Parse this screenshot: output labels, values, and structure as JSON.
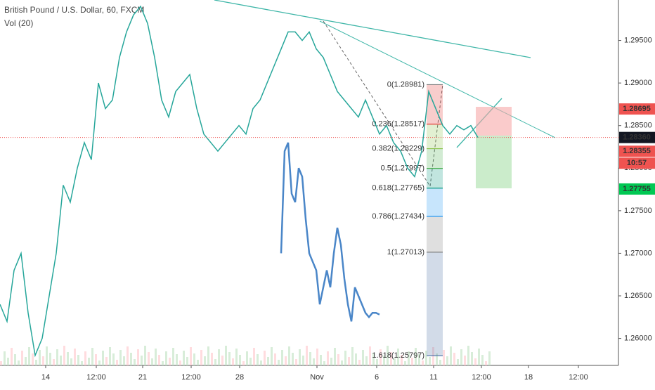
{
  "chart_data": {
    "type": "line",
    "title": "British Pound / U.S. Dollar, 60, FXCM",
    "subtitle": "Vol (20)",
    "x_labels": [
      "14",
      "12:00",
      "21",
      "12:00",
      "28",
      "Nov",
      "6",
      "11",
      "12:00",
      "18",
      "12:00"
    ],
    "ylim": [
      1.25683,
      1.29975
    ],
    "yticks": [
      {
        "value": 1.26,
        "label": "1.26000"
      },
      {
        "value": 1.265,
        "label": "1.26500"
      },
      {
        "value": 1.27,
        "label": "1.27000"
      },
      {
        "value": 1.275,
        "label": "1.27500"
      },
      {
        "value": 1.28,
        "label": "1.28000"
      },
      {
        "value": 1.285,
        "label": "1.28500"
      },
      {
        "value": 1.29,
        "label": "1.29000"
      },
      {
        "value": 1.295,
        "label": "1.29500"
      }
    ],
    "series": [
      {
        "color": "#26a69a",
        "values": [
          1.264,
          1.262,
          1.268,
          1.27,
          1.263,
          1.258,
          1.26,
          1.265,
          1.27,
          1.278,
          1.276,
          1.28,
          1.283,
          1.281,
          1.29,
          1.287,
          1.288,
          1.293,
          1.296,
          1.298,
          1.299,
          1.297,
          1.293,
          1.288,
          1.286,
          1.289,
          1.29,
          1.291,
          1.287,
          1.284,
          1.283,
          1.282,
          1.283,
          1.284,
          1.285,
          1.284,
          1.287,
          1.288,
          1.29,
          1.292,
          1.294,
          1.296,
          1.296,
          1.295,
          1.296,
          1.294,
          1.293,
          1.291,
          1.289,
          1.288,
          1.287,
          1.286,
          1.288,
          1.286,
          1.284,
          1.285,
          1.283,
          1.282,
          1.28,
          1.279,
          1.282,
          1.289,
          1.287,
          1.285,
          1.284,
          1.285,
          1.2845,
          1.285,
          1.2836
        ]
      },
      {
        "color": "#4a86c8",
        "values": [
          1.27,
          1.282,
          1.283,
          1.277,
          1.276,
          1.28,
          1.279,
          1.274,
          1.27,
          1.269,
          1.268,
          1.264,
          1.266,
          1.268,
          1.266,
          1.27,
          1.273,
          1.271,
          1.267,
          1.264,
          1.262,
          1.266,
          1.265,
          1.264,
          1.263,
          1.2625,
          1.263,
          1.263,
          1.2628
        ]
      }
    ],
    "fib_levels": [
      {
        "label": "0(1.28981)",
        "value": 1.28981,
        "color": "#808080"
      },
      {
        "label": "0.236(1.28517)",
        "value": 1.28517,
        "color": "#e53935"
      },
      {
        "label": "0.382(1.28229)",
        "value": 1.28229,
        "color": "#8bc34a"
      },
      {
        "label": "0.5(1.27997)",
        "value": 1.27997,
        "color": "#4caf50"
      },
      {
        "label": "0.618(1.27765)",
        "value": 1.27765,
        "color": "#089981"
      },
      {
        "label": "0.786(1.27434)",
        "value": 1.27434,
        "color": "#2196f3"
      },
      {
        "label": "1(1.27013)",
        "value": 1.27013,
        "color": "#808080"
      },
      {
        "label": "1.618(1.25797)",
        "value": 1.25797,
        "color": "#4a6fa5"
      }
    ],
    "price_badges": [
      {
        "label": "1.28695",
        "value": 1.28695,
        "color": "#ef5350"
      },
      {
        "label": "1.28360",
        "value": 1.2836,
        "color": "#131722"
      },
      {
        "label": "1.28355",
        "value": 1.28355,
        "color": "#ef5350"
      },
      {
        "label": "10:57",
        "value": 1.2818,
        "color": "#ef5350"
      },
      {
        "label": "1.27755",
        "value": 1.27755,
        "color": "#00c853"
      }
    ]
  }
}
